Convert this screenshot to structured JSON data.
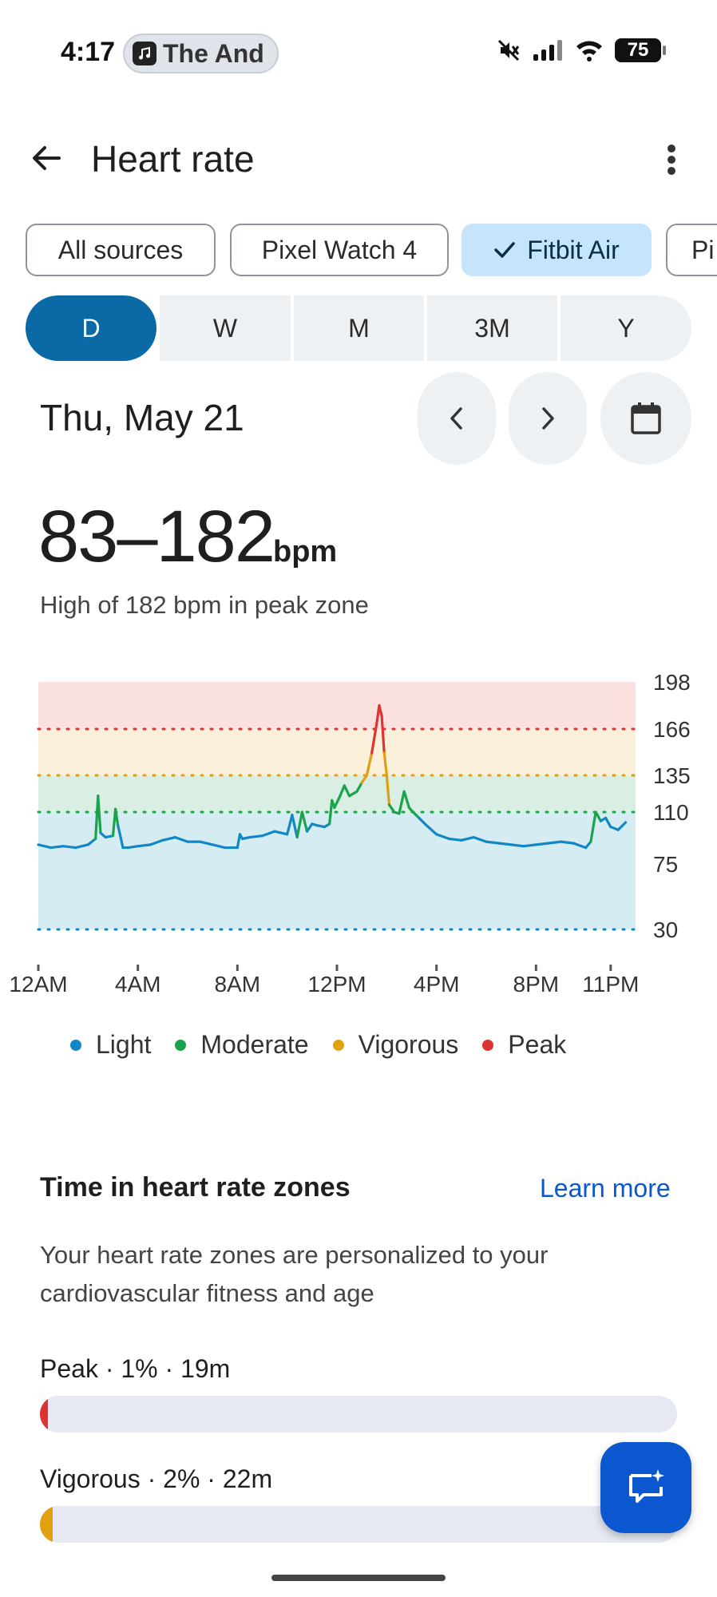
{
  "status_bar": {
    "time": "4:17",
    "media_text": "The And",
    "battery": "75"
  },
  "header": {
    "title": "Heart rate"
  },
  "sources": [
    {
      "label": "All sources",
      "selected": false
    },
    {
      "label": "Pixel Watch 4",
      "selected": false
    },
    {
      "label": "Fitbit Air",
      "selected": true
    },
    {
      "label": "Pi",
      "selected": false
    }
  ],
  "periods": [
    "D",
    "W",
    "M",
    "3M",
    "Y"
  ],
  "selected_period": "D",
  "date": "Thu, May 21",
  "summary": {
    "range": "83–182",
    "unit": "bpm",
    "note": "High of 182 bpm in peak zone"
  },
  "chart_data": {
    "type": "line",
    "x_tick_labels": [
      "12AM",
      "4AM",
      "8AM",
      "12PM",
      "4PM",
      "8PM",
      "11PM"
    ],
    "y_tick_labels": [
      "198",
      "166",
      "135",
      "110",
      "75",
      "30"
    ],
    "y_ticks": [
      198,
      166,
      135,
      110,
      75,
      30
    ],
    "ylim": [
      30,
      198
    ],
    "xlim": [
      0,
      24
    ],
    "zone_thresholds": {
      "light": 30,
      "moderate": 110,
      "vigorous": 135,
      "peak": 166
    },
    "series": [
      {
        "x": [
          0,
          0.5,
          1,
          1.5,
          2,
          2.3,
          2.4,
          2.5,
          2.7,
          3.0,
          3.1,
          3.2,
          3.4,
          3.6,
          4.0,
          4.5,
          5,
          5.5,
          6,
          6.5,
          7,
          7.5,
          8,
          8.1,
          8.2,
          8.5,
          9,
          9.5,
          10,
          10.2,
          10.4,
          10.6,
          10.8,
          11,
          11.2,
          11.5,
          11.7,
          11.8,
          11.9,
          12.1,
          12.3,
          12.5,
          12.8,
          13.0,
          13.2,
          13.4,
          13.6,
          13.7,
          13.8,
          13.9,
          14.0,
          14.1,
          14.3,
          14.5,
          14.7,
          14.9,
          15.0,
          15.3,
          15.6,
          16,
          16.5,
          17,
          17.5,
          18,
          18.5,
          19,
          19.5,
          20,
          20.5,
          21,
          21.5,
          22,
          22.2,
          22.4,
          22.6,
          22.8,
          23,
          23.3,
          23.6
        ],
        "values": [
          88,
          86,
          87,
          86,
          88,
          92,
          121,
          96,
          93,
          94,
          112,
          101,
          86,
          86,
          87,
          88,
          91,
          93,
          90,
          90,
          88,
          86,
          86,
          95,
          92,
          93,
          94,
          97,
          95,
          108,
          93,
          110,
          97,
          102,
          101,
          100,
          102,
          118,
          113,
          120,
          128,
          121,
          124,
          130,
          135,
          150,
          170,
          182,
          175,
          150,
          135,
          115,
          110,
          109,
          124,
          113,
          111,
          106,
          101,
          95,
          92,
          91,
          93,
          90,
          89,
          88,
          87,
          88,
          89,
          90,
          89,
          86,
          90,
          110,
          104,
          106,
          100,
          98,
          103
        ]
      }
    ],
    "legend": [
      "Light",
      "Moderate",
      "Vigorous",
      "Peak"
    ],
    "zone_colors": {
      "light": "#1188c4",
      "moderate": "#1aa34a",
      "vigorous": "#e0a010",
      "peak": "#dd3333"
    },
    "band_colors": {
      "light": "#d6ecf3",
      "moderate": "#d9efe3",
      "vigorous": "#fbf0d9",
      "peak": "#fbe0e0"
    }
  },
  "zones_section": {
    "title": "Time in heart rate zones",
    "learn_more": "Learn more",
    "description": "Your heart rate zones are personalized to your cardiovascular fitness and age",
    "zones": [
      {
        "label": "Peak · 1% · 19m",
        "percent": 1,
        "color": "#dd3333"
      },
      {
        "label": "Vigorous · 2% · 22m",
        "percent": 2,
        "color": "#e0a010"
      }
    ]
  }
}
